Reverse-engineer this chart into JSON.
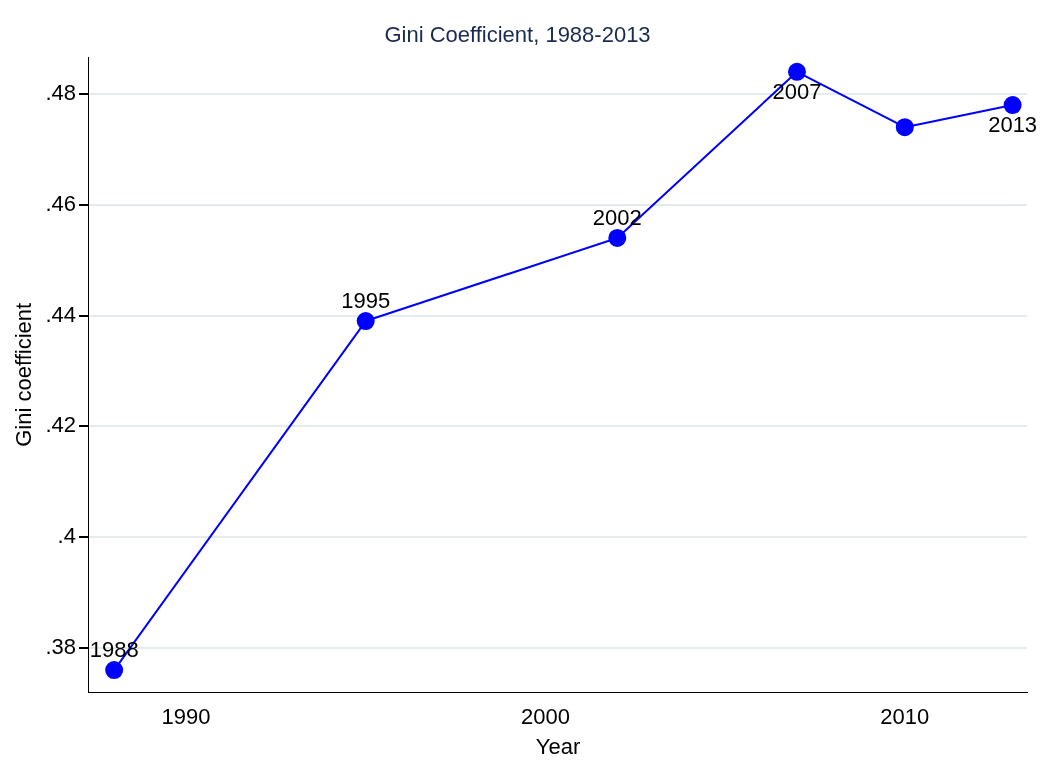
{
  "chart_data": {
    "type": "line",
    "title": "Gini Coefficient, 1988-2013",
    "xlabel": "Year",
    "ylabel": "Gini coefficient",
    "x": [
      1988,
      1995,
      2002,
      2007,
      2010,
      2013
    ],
    "series": [
      {
        "color": "#0000ff",
        "values": [
          0.376,
          0.439,
          0.454,
          0.484,
          0.474,
          0.478
        ]
      }
    ],
    "annotations": [
      {
        "text": "1988",
        "x": 1988,
        "y": 0.376
      },
      {
        "text": "1995",
        "x": 1995,
        "y": 0.439
      },
      {
        "text": "2002",
        "x": 2002,
        "y": 0.454
      },
      {
        "text": "2007",
        "x": 2007,
        "y": 0.484
      },
      {
        "text": "2013",
        "x": 2013,
        "y": 0.478
      }
    ],
    "xlim": [
      1987.3,
      2013.4
    ],
    "xticks": [
      1990,
      2000,
      2010
    ],
    "ylim": [
      0.372,
      0.4866
    ],
    "yticks": [
      {
        "value": 0.38,
        "label": ".38"
      },
      {
        "value": 0.4,
        "label": ".4"
      },
      {
        "value": 0.42,
        "label": ".42"
      },
      {
        "value": 0.44,
        "label": ".44"
      },
      {
        "value": 0.46,
        "label": ".46"
      },
      {
        "value": 0.48,
        "label": ".48"
      }
    ],
    "grid": "y",
    "marker": "circle",
    "line_style": "solid",
    "legend": false
  }
}
